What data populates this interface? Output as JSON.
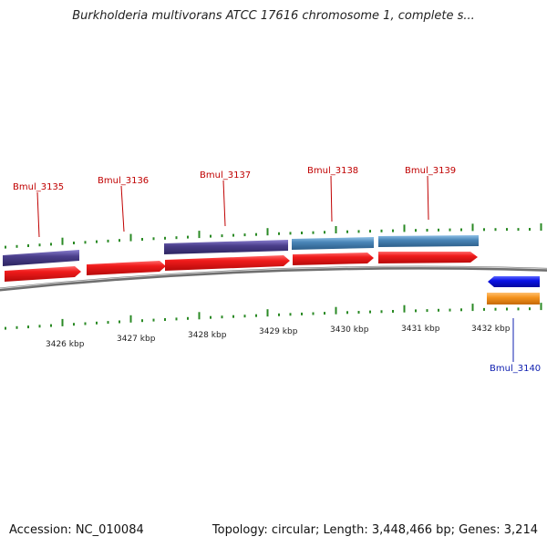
{
  "title": "Burkholderia multivorans ATCC 17616 chromosome 1, complete s...",
  "accession": "Accession: NC_010084",
  "summary": "Topology: circular; Length: 3,448,466 bp; Genes: 3,214",
  "colors": {
    "cds_forward": "#e8111b",
    "cds_reverse": "#0a12e6",
    "gene_dark": "#4b3f8c",
    "gene_steel": "#4a86b8",
    "gene_orange": "#f5941e",
    "tick": "#2a8a24",
    "backbone": "#888888",
    "label_top": "#c00000",
    "label_bottom": "#1020b0"
  },
  "genes": [
    {
      "name": "Bmul_3135",
      "strand": "+"
    },
    {
      "name": "Bmul_3136",
      "strand": "+"
    },
    {
      "name": "Bmul_3137",
      "strand": "+"
    },
    {
      "name": "Bmul_3138",
      "strand": "+"
    },
    {
      "name": "Bmul_3139",
      "strand": "+"
    },
    {
      "name": "Bmul_3140",
      "strand": "-"
    }
  ],
  "ticks": [
    "3426 kbp",
    "3427 kbp",
    "3428 kbp",
    "3429 kbp",
    "3430 kbp",
    "3431 kbp",
    "3432 kbp"
  ]
}
